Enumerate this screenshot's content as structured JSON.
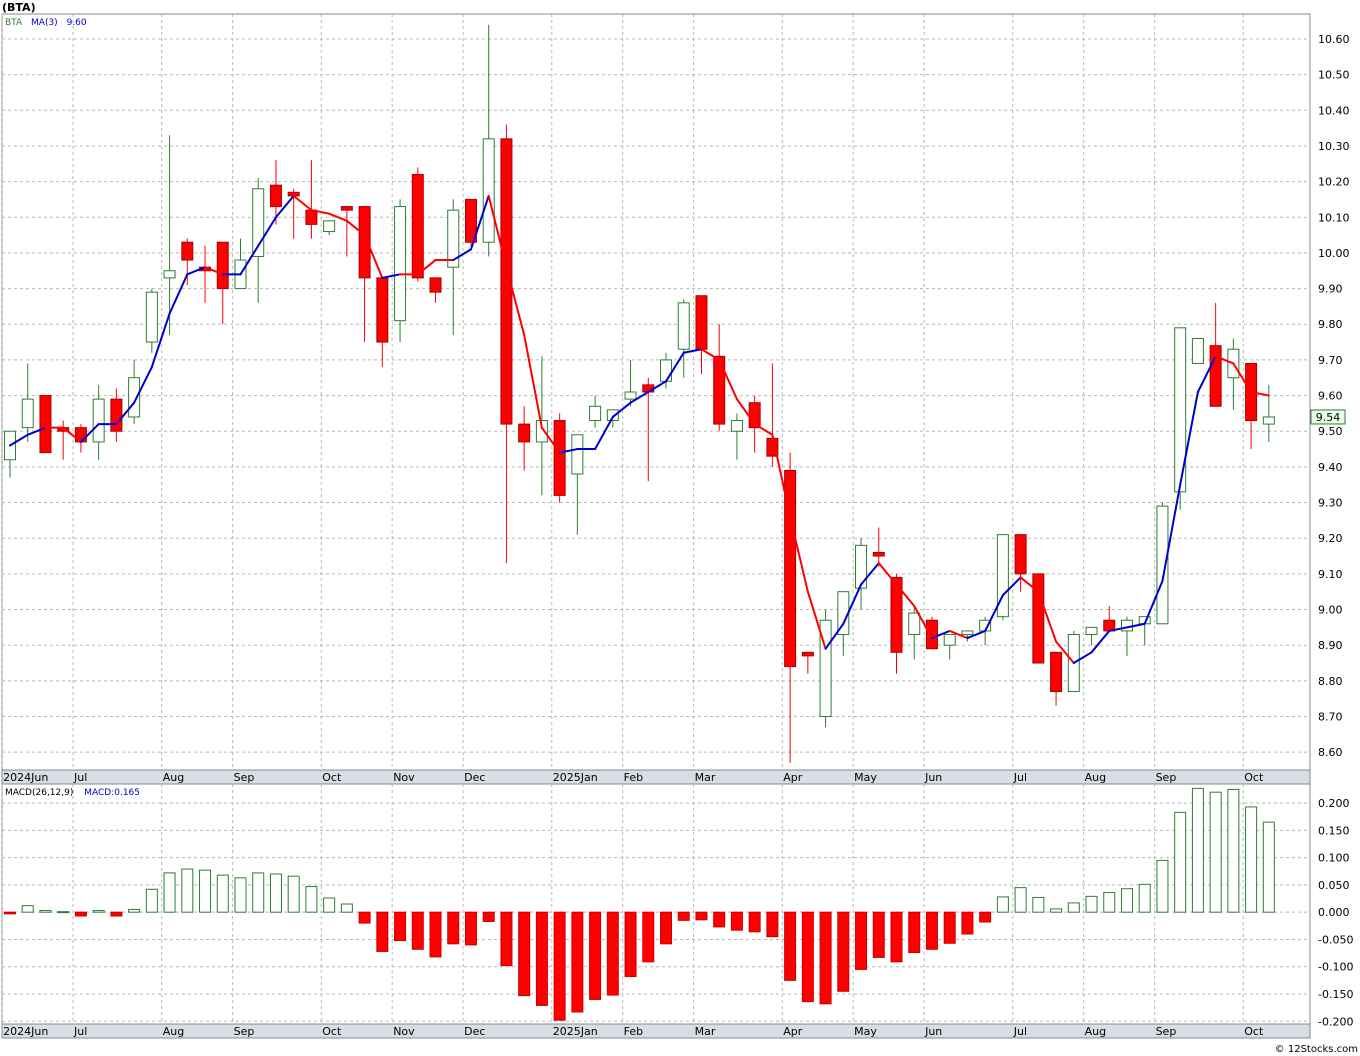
{
  "header": {
    "symbol_title": "(BTA)"
  },
  "footer": {
    "watermark": "© 12Stocks.com"
  },
  "colors": {
    "up": "#2e7d32",
    "down": "#ff0000",
    "ma_up": "#0000cc",
    "ma_down": "#ff0000",
    "grid": "#b8b8b8",
    "axis_band": "#d8dde6"
  },
  "chart_data": [
    {
      "type": "candlestick",
      "legend": {
        "ticker": "BTA",
        "ma_label": "MA(3)",
        "ma_value": "9.60"
      },
      "last_price": "9.54",
      "ylim": [
        8.55,
        10.67
      ],
      "y_ticks": [
        "10.60",
        "10.50",
        "10.40",
        "10.30",
        "10.20",
        "10.10",
        "10.00",
        "9.90",
        "9.80",
        "9.70",
        "9.60",
        "9.50",
        "9.40",
        "9.30",
        "9.20",
        "9.10",
        "9.00",
        "8.90",
        "8.80",
        "8.70",
        "8.60"
      ],
      "x_ticks": [
        {
          "label": "2024Jun",
          "index": 0
        },
        {
          "label": "Jul",
          "index": 4
        },
        {
          "label": "Aug",
          "index": 9
        },
        {
          "label": "Sep",
          "index": 13
        },
        {
          "label": "Oct",
          "index": 18
        },
        {
          "label": "Nov",
          "index": 22
        },
        {
          "label": "Dec",
          "index": 26
        },
        {
          "label": "2025Jan",
          "index": 31
        },
        {
          "label": "Feb",
          "index": 35
        },
        {
          "label": "Mar",
          "index": 39
        },
        {
          "label": "Apr",
          "index": 44
        },
        {
          "label": "May",
          "index": 48
        },
        {
          "label": "Jun",
          "index": 52
        },
        {
          "label": "Jul",
          "index": 57
        },
        {
          "label": "Aug",
          "index": 61
        },
        {
          "label": "Sep",
          "index": 65
        },
        {
          "label": "Oct",
          "index": 70
        }
      ],
      "candles": [
        {
          "o": 9.42,
          "h": 9.5,
          "l": 9.37,
          "c": 9.5
        },
        {
          "o": 9.51,
          "h": 9.69,
          "l": 9.47,
          "c": 9.59
        },
        {
          "o": 9.6,
          "h": 9.6,
          "l": 9.44,
          "c": 9.44
        },
        {
          "o": 9.51,
          "h": 9.53,
          "l": 9.42,
          "c": 9.5
        },
        {
          "o": 9.51,
          "h": 9.52,
          "l": 9.44,
          "c": 9.47
        },
        {
          "o": 9.47,
          "h": 9.63,
          "l": 9.42,
          "c": 9.59
        },
        {
          "o": 9.59,
          "h": 9.62,
          "l": 9.47,
          "c": 9.5
        },
        {
          "o": 9.54,
          "h": 9.7,
          "l": 9.52,
          "c": 9.65
        },
        {
          "o": 9.75,
          "h": 9.9,
          "l": 9.72,
          "c": 9.89
        },
        {
          "o": 9.93,
          "h": 10.33,
          "l": 9.77,
          "c": 9.95
        },
        {
          "o": 10.03,
          "h": 10.04,
          "l": 9.91,
          "c": 9.98
        },
        {
          "o": 9.96,
          "h": 10.02,
          "l": 9.86,
          "c": 9.95
        },
        {
          "o": 10.03,
          "h": 10.03,
          "l": 9.8,
          "c": 9.9
        },
        {
          "o": 9.9,
          "h": 10.04,
          "l": 9.9,
          "c": 9.98
        },
        {
          "o": 9.99,
          "h": 10.21,
          "l": 9.86,
          "c": 10.18
        },
        {
          "o": 10.19,
          "h": 10.26,
          "l": 10.08,
          "c": 10.13
        },
        {
          "o": 10.17,
          "h": 10.18,
          "l": 10.04,
          "c": 10.16
        },
        {
          "o": 10.12,
          "h": 10.26,
          "l": 10.04,
          "c": 10.08
        },
        {
          "o": 10.06,
          "h": 10.09,
          "l": 10.05,
          "c": 10.09
        },
        {
          "o": 10.13,
          "h": 10.13,
          "l": 9.99,
          "c": 10.12
        },
        {
          "o": 10.13,
          "h": 10.13,
          "l": 9.75,
          "c": 9.93
        },
        {
          "o": 9.93,
          "h": 9.93,
          "l": 9.68,
          "c": 9.75
        },
        {
          "o": 9.81,
          "h": 10.15,
          "l": 9.75,
          "c": 10.13
        },
        {
          "o": 10.22,
          "h": 10.24,
          "l": 9.92,
          "c": 9.93
        },
        {
          "o": 9.93,
          "h": 9.93,
          "l": 9.86,
          "c": 9.89
        },
        {
          "o": 9.96,
          "h": 10.15,
          "l": 9.77,
          "c": 10.12
        },
        {
          "o": 10.15,
          "h": 10.15,
          "l": 10.02,
          "c": 10.03
        },
        {
          "o": 10.03,
          "h": 10.64,
          "l": 9.99,
          "c": 10.32
        },
        {
          "o": 10.32,
          "h": 10.36,
          "l": 9.13,
          "c": 9.52
        },
        {
          "o": 9.52,
          "h": 9.57,
          "l": 9.39,
          "c": 9.47
        },
        {
          "o": 9.47,
          "h": 9.71,
          "l": 9.32,
          "c": 9.53
        },
        {
          "o": 9.53,
          "h": 9.55,
          "l": 9.3,
          "c": 9.32
        },
        {
          "o": 9.38,
          "h": 9.49,
          "l": 9.21,
          "c": 9.49
        },
        {
          "o": 9.53,
          "h": 9.6,
          "l": 9.51,
          "c": 9.57
        },
        {
          "o": 9.53,
          "h": 9.56,
          "l": 9.51,
          "c": 9.56
        },
        {
          "o": 9.59,
          "h": 9.7,
          "l": 9.57,
          "c": 9.61
        },
        {
          "o": 9.63,
          "h": 9.65,
          "l": 9.36,
          "c": 9.61
        },
        {
          "o": 9.64,
          "h": 9.72,
          "l": 9.62,
          "c": 9.7
        },
        {
          "o": 9.73,
          "h": 9.87,
          "l": 9.65,
          "c": 9.86
        },
        {
          "o": 9.88,
          "h": 9.88,
          "l": 9.66,
          "c": 9.73
        },
        {
          "o": 9.71,
          "h": 9.8,
          "l": 9.5,
          "c": 9.52
        },
        {
          "o": 9.5,
          "h": 9.55,
          "l": 9.42,
          "c": 9.53
        },
        {
          "o": 9.58,
          "h": 9.6,
          "l": 9.44,
          "c": 9.51
        },
        {
          "o": 9.48,
          "h": 9.69,
          "l": 9.4,
          "c": 9.43
        },
        {
          "o": 9.39,
          "h": 9.44,
          "l": 8.57,
          "c": 8.84
        },
        {
          "o": 8.88,
          "h": 8.88,
          "l": 8.82,
          "c": 8.87
        },
        {
          "o": 8.7,
          "h": 9.0,
          "l": 8.67,
          "c": 8.97
        },
        {
          "o": 8.93,
          "h": 9.05,
          "l": 8.87,
          "c": 9.05
        },
        {
          "o": 9.06,
          "h": 9.2,
          "l": 9.0,
          "c": 9.18
        },
        {
          "o": 9.16,
          "h": 9.23,
          "l": 9.12,
          "c": 9.15
        },
        {
          "o": 9.09,
          "h": 9.1,
          "l": 8.82,
          "c": 8.88
        },
        {
          "o": 8.93,
          "h": 9.01,
          "l": 8.86,
          "c": 8.99
        },
        {
          "o": 8.97,
          "h": 8.98,
          "l": 8.89,
          "c": 8.89
        },
        {
          "o": 8.9,
          "h": 8.93,
          "l": 8.86,
          "c": 8.93
        },
        {
          "o": 8.93,
          "h": 8.94,
          "l": 8.91,
          "c": 8.94
        },
        {
          "o": 8.94,
          "h": 8.98,
          "l": 8.9,
          "c": 8.97
        },
        {
          "o": 8.98,
          "h": 9.21,
          "l": 8.97,
          "c": 9.21
        },
        {
          "o": 9.21,
          "h": 9.21,
          "l": 9.05,
          "c": 9.1
        },
        {
          "o": 9.1,
          "h": 9.1,
          "l": 8.85,
          "c": 8.85
        },
        {
          "o": 8.88,
          "h": 8.88,
          "l": 8.73,
          "c": 8.77
        },
        {
          "o": 8.77,
          "h": 8.94,
          "l": 8.77,
          "c": 8.93
        },
        {
          "o": 8.93,
          "h": 8.95,
          "l": 8.9,
          "c": 8.95
        },
        {
          "o": 8.97,
          "h": 9.01,
          "l": 8.94,
          "c": 8.94
        },
        {
          "o": 8.94,
          "h": 8.98,
          "l": 8.87,
          "c": 8.97
        },
        {
          "o": 8.96,
          "h": 8.98,
          "l": 8.9,
          "c": 8.98
        },
        {
          "o": 8.96,
          "h": 9.3,
          "l": 8.96,
          "c": 9.29
        },
        {
          "o": 9.33,
          "h": 9.79,
          "l": 9.28,
          "c": 9.79
        },
        {
          "o": 9.69,
          "h": 9.76,
          "l": 9.69,
          "c": 9.76
        },
        {
          "o": 9.74,
          "h": 9.86,
          "l": 9.57,
          "c": 9.57
        },
        {
          "o": 9.65,
          "h": 9.76,
          "l": 9.56,
          "c": 9.73
        },
        {
          "o": 9.69,
          "h": 9.69,
          "l": 9.45,
          "c": 9.53
        },
        {
          "o": 9.52,
          "h": 9.63,
          "l": 9.47,
          "c": 9.54
        }
      ],
      "ma3": [
        9.46,
        9.49,
        9.51,
        9.51,
        9.47,
        9.52,
        9.52,
        9.58,
        9.68,
        9.83,
        9.94,
        9.96,
        9.94,
        9.94,
        10.02,
        10.1,
        10.16,
        10.12,
        10.11,
        10.09,
        10.05,
        9.93,
        9.94,
        9.94,
        9.98,
        9.98,
        10.01,
        10.16,
        9.96,
        9.77,
        9.51,
        9.44,
        9.45,
        9.45,
        9.54,
        9.58,
        9.61,
        9.64,
        9.72,
        9.73,
        9.7,
        9.59,
        9.52,
        9.49,
        9.26,
        9.05,
        8.89,
        8.96,
        9.07,
        9.13,
        9.07,
        9.01,
        8.92,
        8.94,
        8.92,
        8.94,
        9.04,
        9.09,
        9.05,
        8.91,
        8.85,
        8.88,
        8.94,
        8.95,
        8.96,
        9.08,
        9.35,
        9.61,
        9.71,
        9.69,
        9.61,
        9.6
      ],
      "ma_up": [
        true,
        true,
        true,
        false,
        false,
        true,
        true,
        true,
        true,
        true,
        true,
        true,
        false,
        true,
        true,
        true,
        true,
        false,
        false,
        false,
        false,
        false,
        true,
        false,
        false,
        false,
        true,
        true,
        false,
        false,
        false,
        false,
        true,
        true,
        true,
        true,
        true,
        true,
        true,
        true,
        false,
        false,
        false,
        false,
        false,
        false,
        false,
        true,
        true,
        true,
        false,
        false,
        false,
        true,
        false,
        true,
        true,
        true,
        false,
        false,
        false,
        true,
        true,
        true,
        true,
        true,
        true,
        true,
        true,
        false,
        false,
        false
      ]
    },
    {
      "type": "bar",
      "legend": {
        "label": "MACD(26,12,9)",
        "value_label": "MACD:0.165"
      },
      "ylim": [
        -0.205,
        0.235
      ],
      "y_ticks": [
        "0.200",
        "0.150",
        "0.100",
        "0.050",
        "0.000",
        "-0.050",
        "-0.100",
        "-0.150",
        "-0.200"
      ],
      "values": [
        -0.003,
        0.012,
        0.003,
        0.001,
        -0.007,
        0.003,
        -0.007,
        0.005,
        0.042,
        0.072,
        0.079,
        0.077,
        0.068,
        0.063,
        0.072,
        0.07,
        0.066,
        0.047,
        0.026,
        0.015,
        -0.02,
        -0.072,
        -0.052,
        -0.068,
        -0.082,
        -0.058,
        -0.06,
        -0.017,
        -0.098,
        -0.153,
        -0.171,
        -0.198,
        -0.183,
        -0.16,
        -0.152,
        -0.118,
        -0.091,
        -0.058,
        -0.015,
        -0.014,
        -0.027,
        -0.033,
        -0.036,
        -0.045,
        -0.125,
        -0.164,
        -0.168,
        -0.145,
        -0.105,
        -0.083,
        -0.091,
        -0.074,
        -0.068,
        -0.057,
        -0.04,
        -0.018,
        0.028,
        0.045,
        0.027,
        0.006,
        0.017,
        0.029,
        0.036,
        0.043,
        0.051,
        0.095,
        0.183,
        0.227,
        0.22,
        0.225,
        0.193,
        0.165
      ]
    }
  ]
}
